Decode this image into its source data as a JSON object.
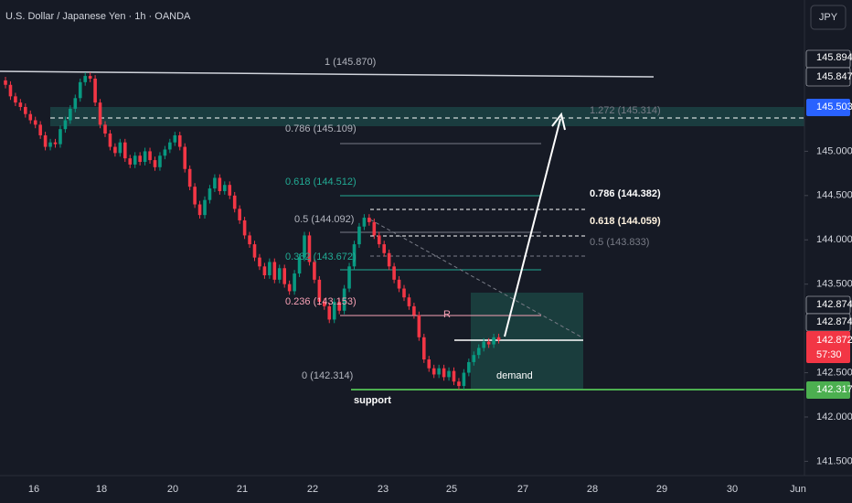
{
  "header": {
    "title": "U.S. Dollar / Japanese Yen · 1h · OANDA",
    "currency_button": "JPY"
  },
  "price_axis": {
    "ticks": [
      {
        "value": 145,
        "label": "145.000"
      },
      {
        "value": 144.5,
        "label": "144.500"
      },
      {
        "value": 144,
        "label": "144.000"
      },
      {
        "value": 143.5,
        "label": "143.500"
      },
      {
        "value": 142.5,
        "label": "142.500"
      },
      {
        "value": 142,
        "label": "142.000"
      },
      {
        "value": 141.5,
        "label": "141.500"
      }
    ],
    "tags": [
      "145.894",
      "145.847",
      "145.503",
      "142.874",
      "142.874",
      "142.872",
      "57:30",
      "142.317"
    ]
  },
  "time_axis": [
    "16",
    "18",
    "20",
    "21",
    "22",
    "23",
    "25",
    "27",
    "28",
    "29",
    "30",
    "Jun"
  ],
  "candles": {
    "closes": [
      145.75,
      145.62,
      145.55,
      145.5,
      145.42,
      145.35,
      145.3,
      145.18,
      145.05,
      145.1,
      145.08,
      145.25,
      145.35,
      145.48,
      145.6,
      145.78,
      145.85,
      145.82,
      145.55,
      145.3,
      145.2,
      145.05,
      144.98,
      145.1,
      144.92,
      144.85,
      144.95,
      144.88,
      145.0,
      144.9,
      144.82,
      144.95,
      145.02,
      145.1,
      145.18,
      145.05,
      144.8,
      144.6,
      144.4,
      144.28,
      144.45,
      144.58,
      144.7,
      144.55,
      144.62,
      144.5,
      144.35,
      144.22,
      144.05,
      143.95,
      143.8,
      143.7,
      143.6,
      143.75,
      143.55,
      143.68,
      143.5,
      143.42,
      143.62,
      143.8,
      144.05,
      143.75,
      143.55,
      143.3,
      143.25,
      143.1,
      143.3,
      143.2,
      143.45,
      143.7,
      143.95,
      144.15,
      144.25,
      144.2,
      144.05,
      143.95,
      143.85,
      143.7,
      143.55,
      143.45,
      143.35,
      143.25,
      143.15,
      142.9,
      142.65,
      142.55,
      142.48,
      142.55,
      142.45,
      142.52,
      142.4,
      142.35,
      142.5,
      142.62,
      142.7,
      142.78,
      142.85,
      142.82,
      142.9,
      142.87
    ]
  },
  "drawings": {
    "fib_left": [
      "1 (145.870)",
      "0.786 (145.109)",
      "0.618 (144.512)",
      "0.5 (144.092)",
      "0.382 (143.672)",
      "0.236 (143.153)",
      "0 (142.314)"
    ],
    "fib_right": [
      "1.272 (145.314)",
      "0.786 (144.382)",
      "0.618 (144.059)",
      "0.5 (143.833)"
    ],
    "resistance": "R",
    "support": "support",
    "zone": "demand"
  }
}
